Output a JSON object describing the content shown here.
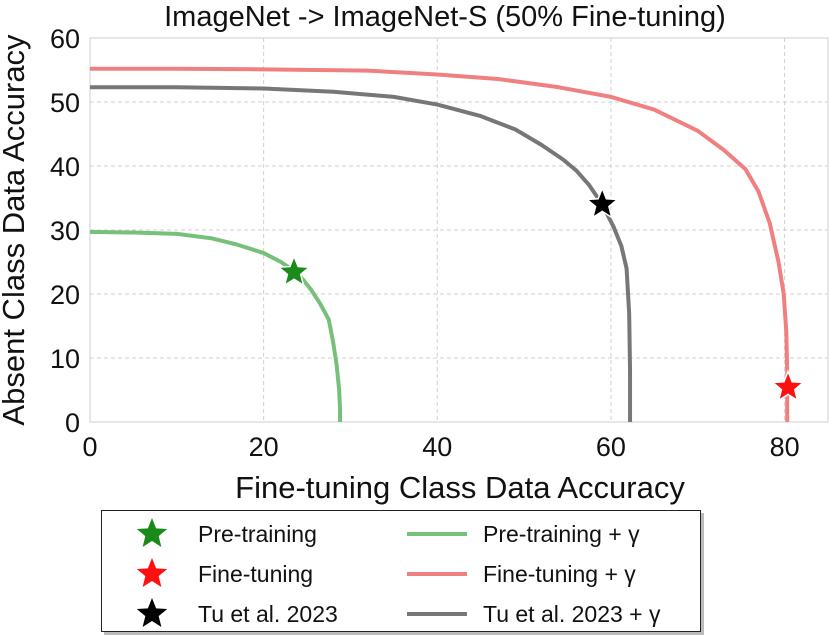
{
  "chart_data": {
    "type": "line",
    "title": "ImageNet -> ImageNet-S (50% Fine-tuning)",
    "xlabel": "Fine-tuning Class Data Accuracy",
    "ylabel": "Absent Class Data Accuracy",
    "xlim": [
      0,
      85
    ],
    "ylim": [
      0,
      60
    ],
    "xticks": [
      0,
      20,
      40,
      60,
      80
    ],
    "yticks": [
      0,
      10,
      20,
      30,
      40,
      50,
      60
    ],
    "grid": true,
    "legend_position": "bottom-center, below axes",
    "series": [
      {
        "name": "Pre-training + γ",
        "color": "#77c07a",
        "x": [
          0,
          5,
          10,
          14,
          17,
          20,
          22,
          23.5,
          24.5,
          25.5,
          26.5,
          27.5,
          28.0,
          28.4,
          28.7,
          28.8,
          28.8
        ],
        "y": [
          29.7,
          29.6,
          29.4,
          28.7,
          27.7,
          26.4,
          25.0,
          23.6,
          22.3,
          20.6,
          18.5,
          16.0,
          12.5,
          9.0,
          5.0,
          2.0,
          0
        ]
      },
      {
        "name": "Fine-tuning + γ",
        "color": "#f08080",
        "x": [
          0,
          10,
          20,
          32,
          40,
          47,
          54,
          60,
          65,
          70,
          73,
          75.5,
          77,
          78.3,
          79.3,
          79.9,
          80.2,
          80.3,
          80.3
        ],
        "y": [
          55.2,
          55.2,
          55.1,
          54.9,
          54.3,
          53.6,
          52.3,
          50.8,
          48.8,
          45.5,
          42.5,
          39.5,
          36.0,
          31.0,
          25.0,
          20.0,
          14.0,
          8.0,
          0
        ]
      },
      {
        "name": "Tu et al. 2023 + γ",
        "color": "#777777",
        "x": [
          0,
          10,
          20,
          28,
          35,
          40,
          45,
          49,
          52,
          54.5,
          56,
          57.5,
          59,
          60.3,
          61.2,
          61.8,
          62.1,
          62.2,
          62.2
        ],
        "y": [
          52.3,
          52.3,
          52.1,
          51.6,
          50.8,
          49.6,
          47.8,
          45.7,
          43.3,
          41.0,
          39.3,
          37.0,
          34.0,
          30.5,
          27.5,
          24.0,
          17.0,
          8.0,
          0
        ]
      }
    ],
    "markers": [
      {
        "name": "Pre-training",
        "x": 23.5,
        "y": 23.4,
        "color": "#1a8a1a",
        "symbol": "star"
      },
      {
        "name": "Fine-tuning",
        "x": 80.4,
        "y": 5.4,
        "color": "#ff1010",
        "symbol": "star"
      },
      {
        "name": "Tu et al. 2023",
        "x": 59.0,
        "y": 34.0,
        "color": "#000000",
        "symbol": "star"
      }
    ],
    "legend": {
      "left_column": [
        "Pre-training",
        "Fine-tuning",
        "Tu et al. 2023"
      ],
      "right_column": [
        "Pre-training + γ",
        "Fine-tuning + γ",
        "Tu et al. 2023 + γ"
      ]
    }
  }
}
